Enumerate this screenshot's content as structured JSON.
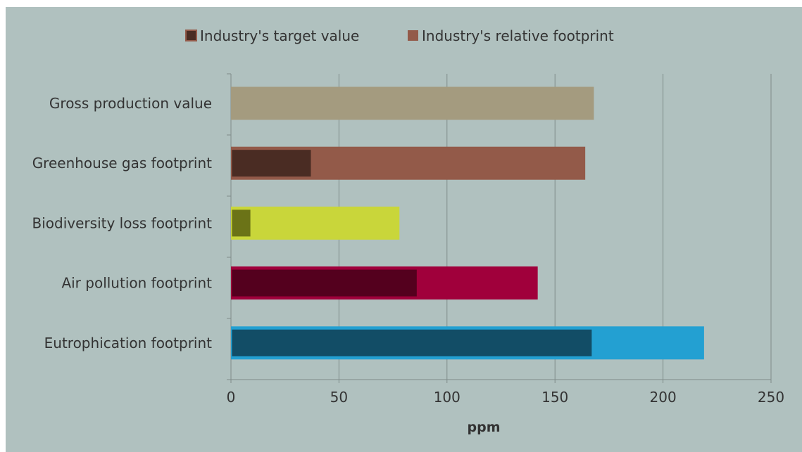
{
  "colors": {
    "background": "#b0c1bf",
    "plot_background": "#b0c1bf",
    "gridline": "#7f8c8a",
    "axis": "#7f8c8a",
    "text": "#333333",
    "legend_target": "#4a2c23",
    "legend_relative": "#935a49"
  },
  "legend": {
    "items": [
      {
        "label": "Industry's target value",
        "color_key": "legend_target",
        "icon": "square-swatch"
      },
      {
        "label": "Industry's relative footprint",
        "color_key": "legend_relative",
        "icon": "square-swatch"
      }
    ]
  },
  "chart_data": {
    "type": "bar",
    "orientation": "horizontal",
    "stacked_overlay": true,
    "title": "",
    "xlabel": "ppm",
    "ylabel": "",
    "xlim": [
      0,
      250
    ],
    "xticks": [
      0,
      50,
      100,
      150,
      200,
      250
    ],
    "grid": true,
    "legend_position": "top",
    "categories": [
      "Gross production value",
      "Greenhouse gas footprint",
      "Biodiversity loss footprint",
      "Air pollution footprint",
      "Eutrophication footprint"
    ],
    "series": [
      {
        "name": "Industry's relative footprint",
        "values": [
          168,
          164,
          78,
          142,
          219
        ],
        "colors": [
          "#a49b7f",
          "#935a49",
          "#c9d63a",
          "#a0003b",
          "#23a0d2"
        ]
      },
      {
        "name": "Industry's target value",
        "values": [
          null,
          37,
          9,
          86,
          167
        ],
        "colors": [
          null,
          "#4a2c23",
          "#6b7317",
          "#54001e",
          "#124d66"
        ]
      }
    ]
  }
}
